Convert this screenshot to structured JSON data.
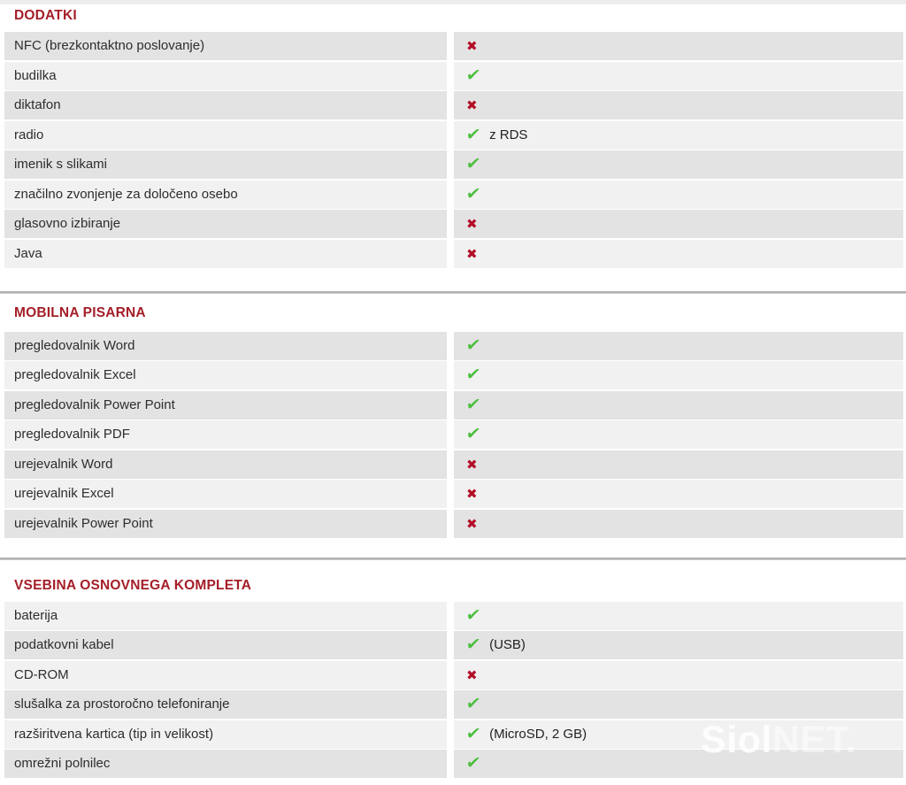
{
  "icons": {
    "check": "✔",
    "cross": "✖"
  },
  "colors": {
    "section_title": "#a41e28",
    "check": "#4cbe3f",
    "cross": "#b30e28",
    "row_dark": "#e3e3e3",
    "row_light": "#f1f1f1"
  },
  "watermark": {
    "brand_bold": "Siol",
    "brand_light": "NET."
  },
  "table": {
    "sections": [
      {
        "title": "DODATKI",
        "rows": [
          {
            "label": "NFC (brezkontaktno poslovanje)",
            "present": false,
            "note": ""
          },
          {
            "label": "budilka",
            "present": true,
            "note": ""
          },
          {
            "label": "diktafon",
            "present": false,
            "note": ""
          },
          {
            "label": "radio",
            "present": true,
            "note": "z RDS"
          },
          {
            "label": "imenik s slikami",
            "present": true,
            "note": ""
          },
          {
            "label": "značilno zvonjenje za določeno osebo",
            "present": true,
            "note": ""
          },
          {
            "label": "glasovno izbiranje",
            "present": false,
            "note": ""
          },
          {
            "label": "Java",
            "present": false,
            "note": ""
          }
        ]
      },
      {
        "title": "MOBILNA PISARNA",
        "rows": [
          {
            "label": "pregledovalnik Word",
            "present": true,
            "note": ""
          },
          {
            "label": "pregledovalnik Excel",
            "present": true,
            "note": ""
          },
          {
            "label": "pregledovalnik Power Point",
            "present": true,
            "note": ""
          },
          {
            "label": "pregledovalnik PDF",
            "present": true,
            "note": ""
          },
          {
            "label": "urejevalnik Word",
            "present": false,
            "note": ""
          },
          {
            "label": "urejevalnik Excel",
            "present": false,
            "note": ""
          },
          {
            "label": "urejevalnik Power Point",
            "present": false,
            "note": ""
          }
        ]
      },
      {
        "title": "VSEBINA OSNOVNEGA KOMPLETA",
        "rows": [
          {
            "label": "baterija",
            "present": true,
            "note": ""
          },
          {
            "label": "podatkovni kabel",
            "present": true,
            "note": "(USB)"
          },
          {
            "label": "CD-ROM",
            "present": false,
            "note": ""
          },
          {
            "label": "slušalka za prostoročno telefoniranje",
            "present": true,
            "note": ""
          },
          {
            "label": "razširitvena kartica (tip in velikost)",
            "present": true,
            "note": "(MicroSD, 2 GB)"
          },
          {
            "label": "omrežni polnilec",
            "present": true,
            "note": ""
          }
        ]
      }
    ]
  }
}
